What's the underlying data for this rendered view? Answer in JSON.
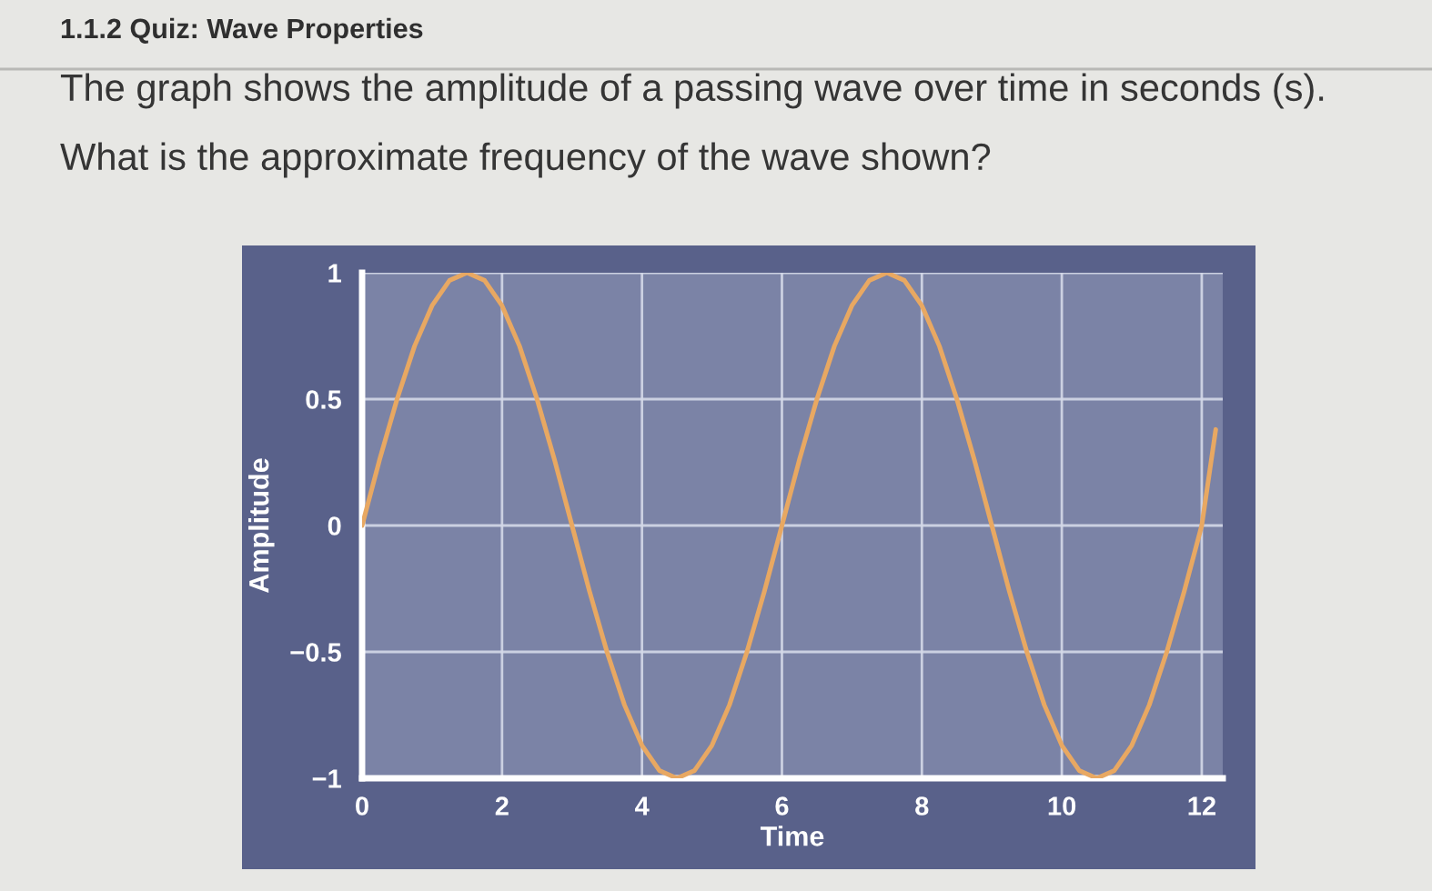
{
  "chart_data": {
    "type": "line",
    "title": "1.1.2 Quiz: Wave Properties",
    "subtitle": "The graph shows the amplitude of a passing wave over time in seconds (s).",
    "annotations": [
      "What is the approximate frequency of the wave shown?"
    ],
    "xlabel": "Time",
    "ylabel": "Amplitude",
    "x": [
      0,
      0.25,
      0.5,
      0.75,
      1,
      1.25,
      1.5,
      1.75,
      2,
      2.25,
      2.5,
      2.75,
      3,
      3.25,
      3.5,
      3.75,
      4,
      4.25,
      4.5,
      4.75,
      5,
      5.25,
      5.5,
      5.75,
      6,
      6.25,
      6.5,
      6.75,
      7,
      7.25,
      7.5,
      7.75,
      8,
      8.25,
      8.5,
      8.75,
      9,
      9.25,
      9.5,
      9.75,
      10,
      10.25,
      10.5,
      10.75,
      11,
      11.25,
      11.5,
      11.75,
      12,
      12.2
    ],
    "series": [
      {
        "color": "#e8a862",
        "values": [
          0,
          0.26,
          0.5,
          0.71,
          0.87,
          0.97,
          1,
          0.97,
          0.87,
          0.71,
          0.5,
          0.26,
          0,
          -0.26,
          -0.5,
          -0.71,
          -0.87,
          -0.97,
          -1,
          -0.97,
          -0.87,
          -0.71,
          -0.5,
          -0.26,
          0,
          0.26,
          0.5,
          0.71,
          0.87,
          0.97,
          1,
          0.97,
          0.87,
          0.71,
          0.5,
          0.26,
          0,
          -0.26,
          -0.5,
          -0.71,
          -0.87,
          -0.97,
          -1,
          -0.97,
          -0.87,
          -0.71,
          -0.5,
          -0.26,
          0,
          0.38
        ]
      }
    ],
    "xlim": [
      0,
      12.3
    ],
    "ylim": [
      -1,
      1
    ],
    "xticks": [
      0,
      2,
      4,
      6,
      8,
      10,
      12
    ],
    "yticks": [
      {
        "value": -1,
        "label": "−1"
      },
      {
        "value": -0.5,
        "label": "−0.5"
      },
      0,
      0.5,
      1
    ],
    "grid": true
  }
}
